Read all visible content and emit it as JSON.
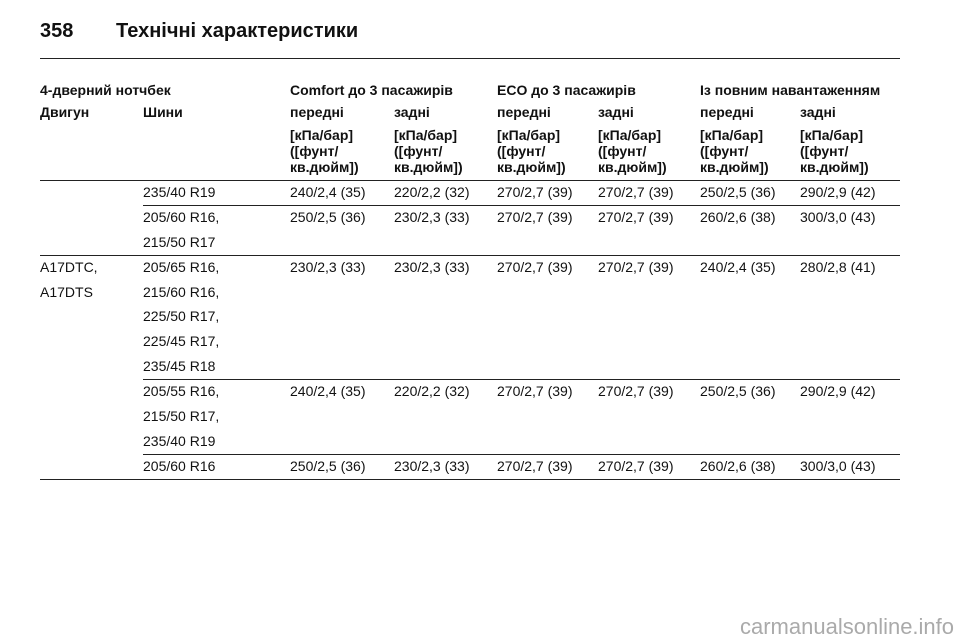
{
  "header": {
    "page_number": "358",
    "title": "Технічні характеристики"
  },
  "table": {
    "group_headers": [
      "4-дверний нотчбек",
      "Comfort до 3 пасажирів",
      "ECO до 3 пасажирів",
      "Із повним навантаженням"
    ],
    "column_headers": [
      "Двигун",
      "Шини",
      "передні",
      "задні",
      "передні",
      "задні",
      "передні",
      "задні"
    ],
    "units": [
      [
        "[кПа/бар]",
        "([фунт/",
        "кв.дюйм])"
      ],
      [
        "[кПа/бар]",
        "([фунт/",
        "кв.дюйм])"
      ],
      [
        "[кПа/бар]",
        "([фунт/",
        "кв.дюйм])"
      ],
      [
        "[кПа/бар]",
        "([фунт/",
        "кв.дюйм])"
      ],
      [
        "[кПа/бар]",
        "([фунт/",
        "кв.дюйм])"
      ],
      [
        "[кПа/бар]",
        "([фунт/",
        "кв.дюйм])"
      ]
    ],
    "rows": [
      {
        "engine": [],
        "tires": [
          "235/40 R19"
        ],
        "pressures": [
          "240/2,4 (35)",
          "220/2,2 (32)",
          "270/2,7 (39)",
          "270/2,7 (39)",
          "250/2,5 (36)",
          "290/2,9 (42)"
        ]
      },
      {
        "engine": [],
        "tires": [
          "205/60 R16,",
          "215/50 R17"
        ],
        "pressures": [
          "250/2,5 (36)",
          "230/2,3 (33)",
          "270/2,7 (39)",
          "270/2,7 (39)",
          "260/2,6 (38)",
          "300/3,0 (43)"
        ]
      },
      {
        "engine": [
          "A17DTC,",
          "A17DTS"
        ],
        "tires": [
          "205/65 R16,",
          "215/60 R16,",
          "225/50 R17,",
          "225/45 R17,",
          "235/45 R18"
        ],
        "pressures": [
          "230/2,3 (33)",
          "230/2,3 (33)",
          "270/2,7 (39)",
          "270/2,7 (39)",
          "240/2,4 (35)",
          "280/2,8 (41)"
        ]
      },
      {
        "engine": [],
        "tires": [
          "205/55 R16,",
          "215/50 R17,",
          "235/40 R19"
        ],
        "pressures": [
          "240/2,4 (35)",
          "220/2,2 (32)",
          "270/2,7 (39)",
          "270/2,7 (39)",
          "250/2,5 (36)",
          "290/2,9 (42)"
        ]
      },
      {
        "engine": [],
        "tires": [
          "205/60 R16"
        ],
        "pressures": [
          "250/2,5 (36)",
          "230/2,3 (33)",
          "270/2,7 (39)",
          "270/2,7 (39)",
          "260/2,6 (38)",
          "300/3,0 (43)"
        ]
      }
    ]
  },
  "watermark": "carmanualsonline.info"
}
